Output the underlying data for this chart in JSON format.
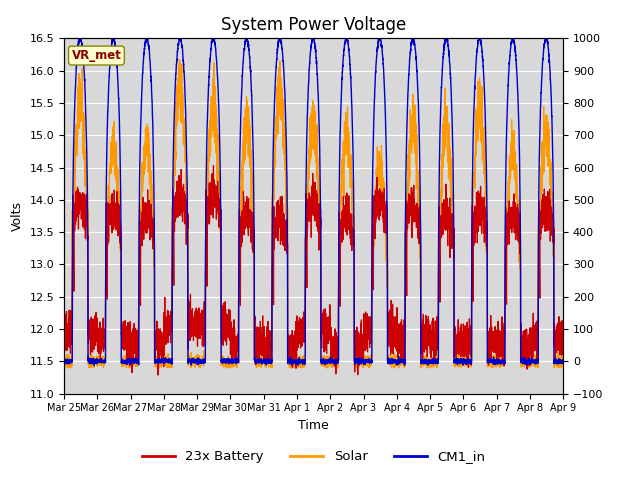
{
  "title": "System Power Voltage",
  "xlabel": "Time",
  "ylabel": "Volts",
  "ylim_left": [
    11.0,
    16.5
  ],
  "ylim_right": [
    -100,
    1000
  ],
  "yticks_left": [
    11.0,
    11.5,
    12.0,
    12.5,
    13.0,
    13.5,
    14.0,
    14.5,
    15.0,
    15.5,
    16.0,
    16.5
  ],
  "yticks_right": [
    -100,
    0,
    100,
    200,
    300,
    400,
    500,
    600,
    700,
    800,
    900,
    1000
  ],
  "xtick_labels": [
    "Mar 25",
    "Mar 26",
    "Mar 27",
    "Mar 28",
    "Mar 29",
    "Mar 30",
    "Mar 31",
    "Apr 1",
    "Apr 2",
    "Apr 3",
    "Apr 4",
    "Apr 5",
    "Apr 6",
    "Apr 7",
    "Apr 8",
    "Apr 9"
  ],
  "color_battery": "#cc0000",
  "color_solar": "#ff9900",
  "color_cm1": "#0000cc",
  "legend_labels": [
    "23x Battery",
    "Solar",
    "CM1_in"
  ],
  "vr_met_label": "VR_met",
  "bg_color": "#d8d8d8",
  "title_fontsize": 12,
  "axis_fontsize": 9,
  "tick_fontsize": 8
}
